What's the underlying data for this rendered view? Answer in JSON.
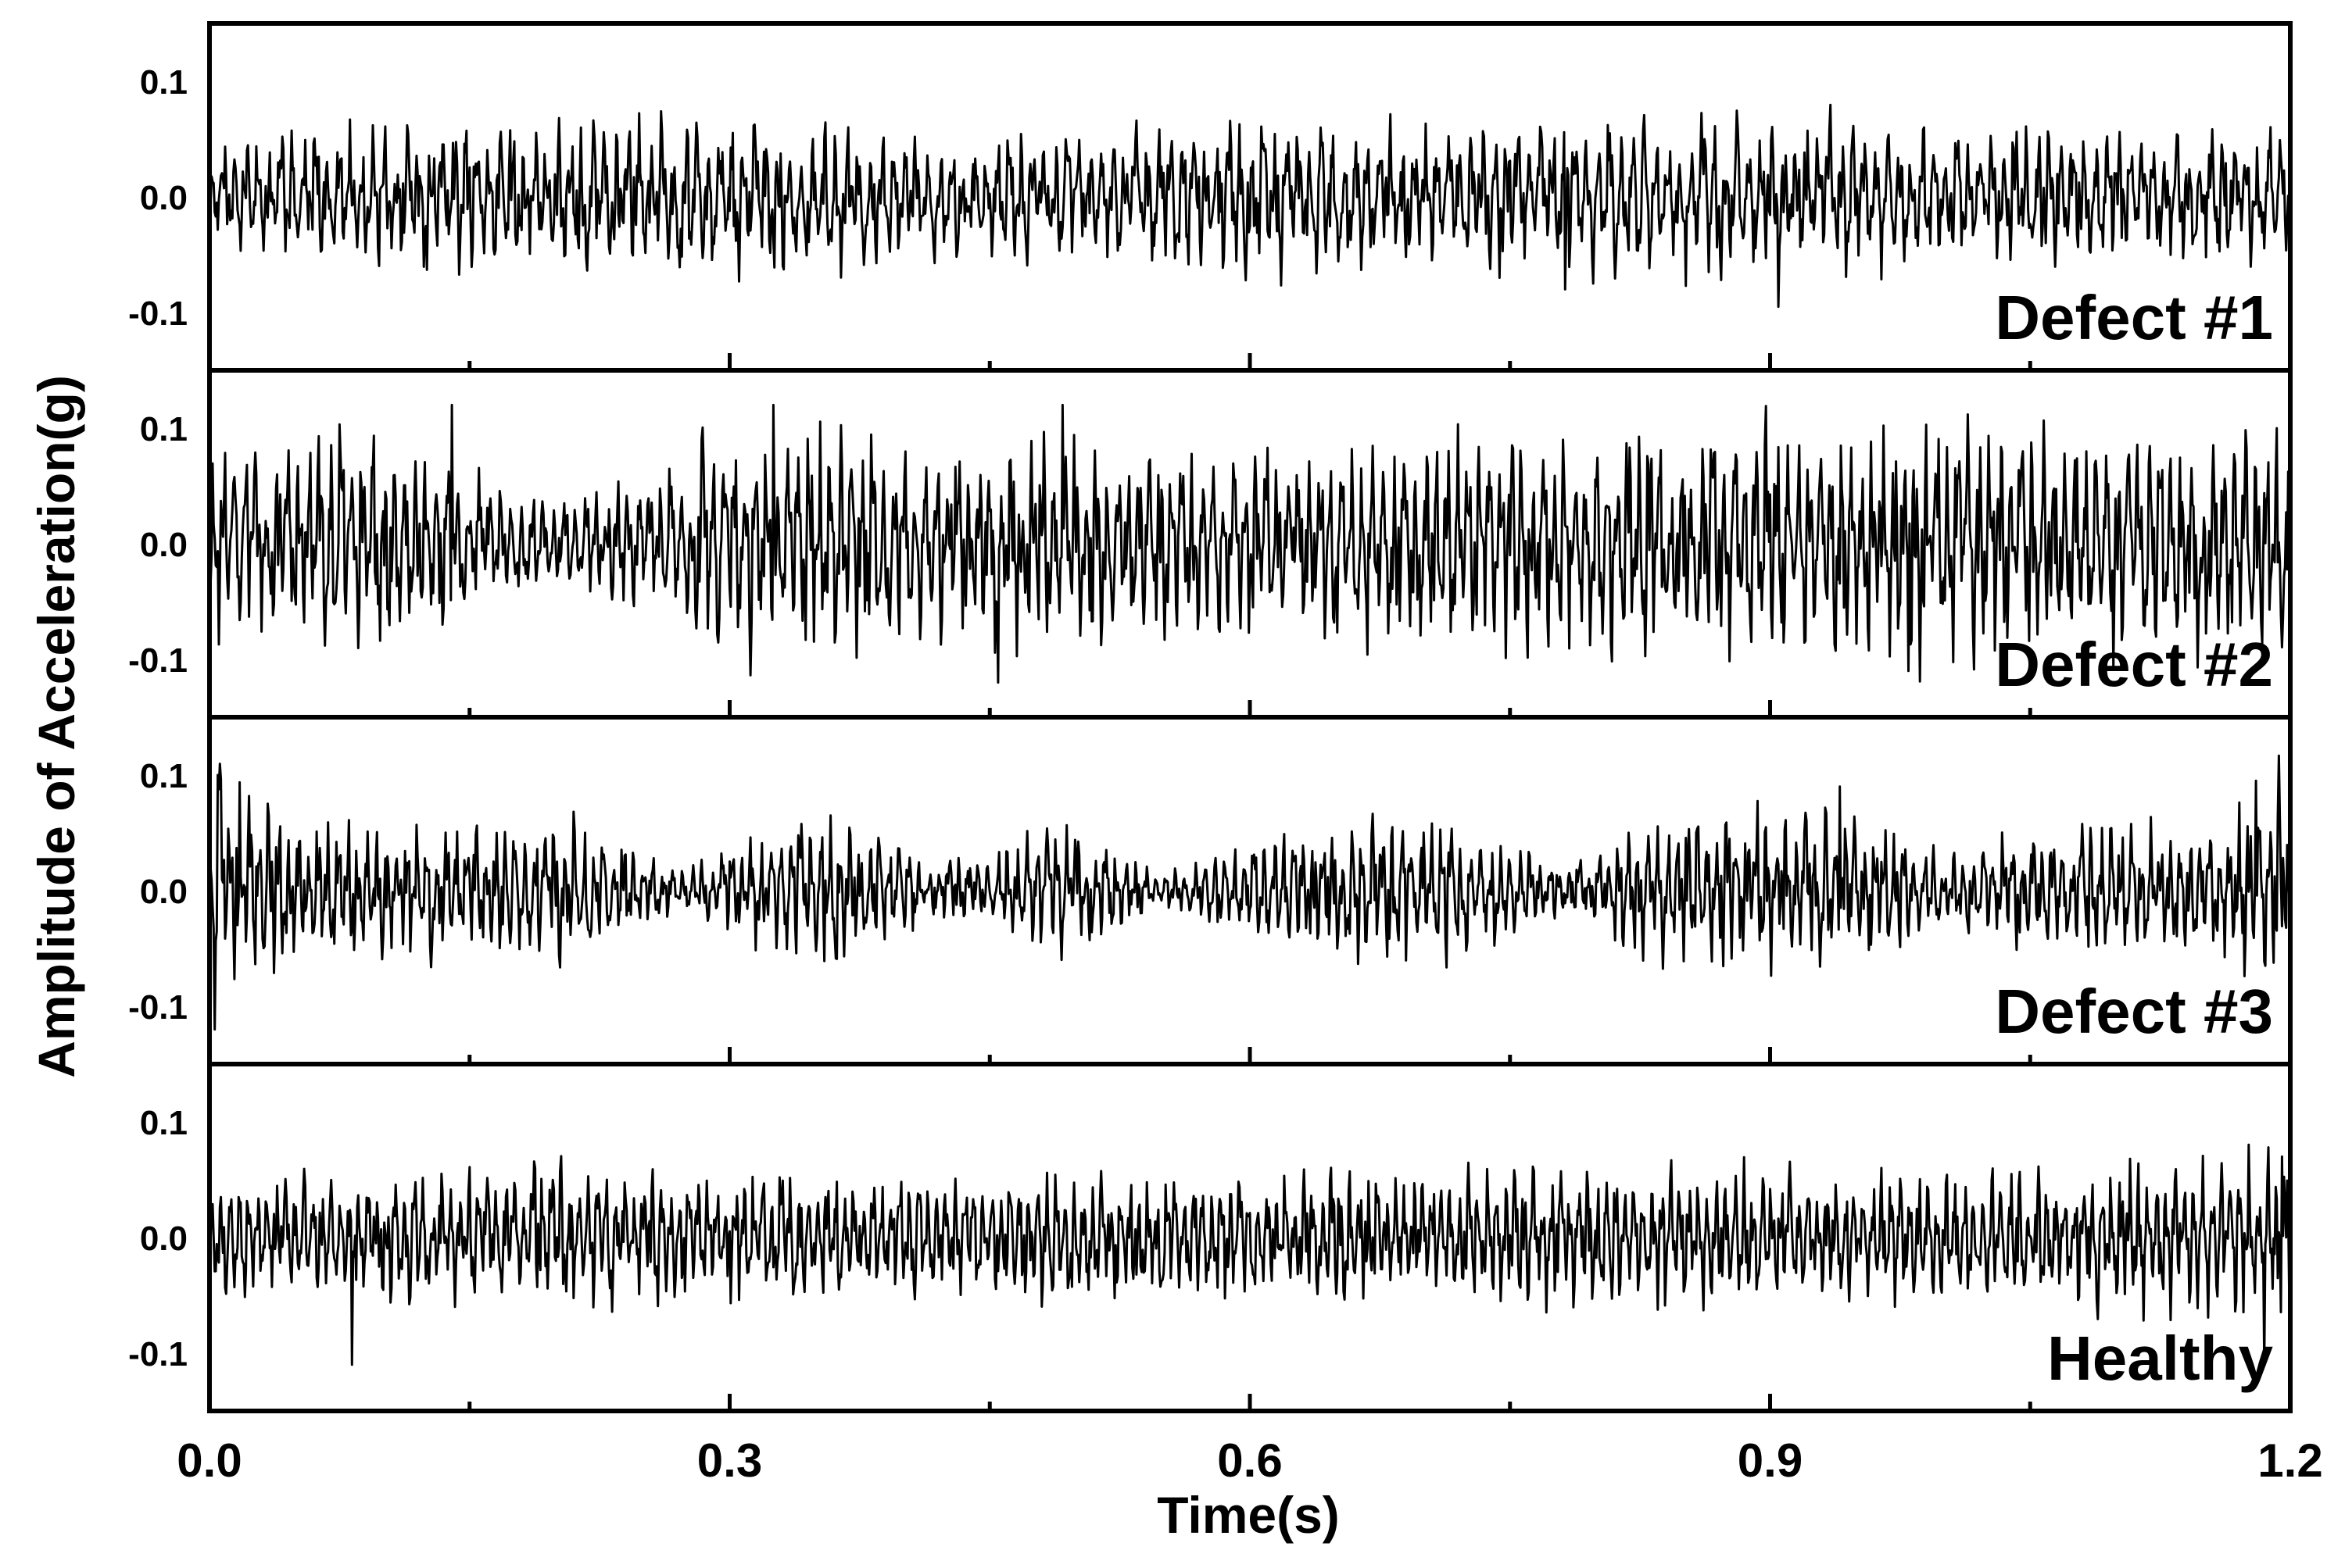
{
  "chart_data": {
    "type": "line",
    "xlabel": "Time(s)",
    "ylabel": "Amplitude of Acceleration(g)",
    "xlim": [
      0.0,
      1.2
    ],
    "x_ticks": [
      "0.0",
      "0.3",
      "0.6",
      "0.9",
      "1.2"
    ],
    "x_minor_ticks": [
      0.15,
      0.45,
      0.75,
      1.05
    ],
    "ylim": [
      -0.15,
      0.15
    ],
    "y_ticks": [
      "0.1",
      "0.0",
      "-0.1"
    ],
    "y_tick_values": [
      0.1,
      0.0,
      -0.1
    ],
    "grid": false,
    "line_color": "#000000",
    "panels": [
      {
        "label": "Defect #1",
        "amplitude_envelope": [
          {
            "t": 0.0,
            "a": 0.04
          },
          {
            "t": 0.1,
            "a": 0.055
          },
          {
            "t": 0.2,
            "a": 0.06
          },
          {
            "t": 0.3,
            "a": 0.06
          },
          {
            "t": 0.4,
            "a": 0.05
          },
          {
            "t": 0.5,
            "a": 0.045
          },
          {
            "t": 0.6,
            "a": 0.06
          },
          {
            "t": 0.7,
            "a": 0.05
          },
          {
            "t": 0.8,
            "a": 0.065
          },
          {
            "t": 0.9,
            "a": 0.06
          },
          {
            "t": 1.0,
            "a": 0.05
          },
          {
            "t": 1.1,
            "a": 0.05
          },
          {
            "t": 1.2,
            "a": 0.05
          }
        ],
        "peaks": [
          {
            "t": 0.782,
            "v": -0.08
          },
          {
            "t": 0.905,
            "v": -0.095
          },
          {
            "t": 0.641,
            "v": 0.06
          },
          {
            "t": 0.214,
            "v": 0.06
          }
        ]
      },
      {
        "label": "Defect #2",
        "amplitude_envelope": [
          {
            "t": 0.0,
            "a": 0.07
          },
          {
            "t": 0.1,
            "a": 0.09
          },
          {
            "t": 0.2,
            "a": 0.03
          },
          {
            "t": 0.3,
            "a": 0.09
          },
          {
            "t": 0.4,
            "a": 0.08
          },
          {
            "t": 0.5,
            "a": 0.08
          },
          {
            "t": 0.6,
            "a": 0.065
          },
          {
            "t": 0.7,
            "a": 0.085
          },
          {
            "t": 0.8,
            "a": 0.085
          },
          {
            "t": 0.9,
            "a": 0.09
          },
          {
            "t": 1.0,
            "a": 0.09
          },
          {
            "t": 1.1,
            "a": 0.085
          },
          {
            "t": 1.2,
            "a": 0.09
          }
        ],
        "peaks": [
          {
            "t": 0.492,
            "v": -0.14
          },
          {
            "t": 0.492,
            "v": 0.12
          },
          {
            "t": 0.14,
            "v": 0.12
          },
          {
            "t": 0.325,
            "v": 0.12
          },
          {
            "t": 0.455,
            "v": -0.12
          },
          {
            "t": 0.98,
            "v": -0.11
          }
        ]
      },
      {
        "label": "Defect #3",
        "amplitude_envelope": [
          {
            "t": 0.0,
            "a": 0.1
          },
          {
            "t": 0.05,
            "a": 0.05
          },
          {
            "t": 0.1,
            "a": 0.05
          },
          {
            "t": 0.15,
            "a": 0.05
          },
          {
            "t": 0.2,
            "a": 0.06
          },
          {
            "t": 0.27,
            "a": 0.015
          },
          {
            "t": 0.35,
            "a": 0.065
          },
          {
            "t": 0.42,
            "a": 0.02
          },
          {
            "t": 0.5,
            "a": 0.05
          },
          {
            "t": 0.55,
            "a": 0.015
          },
          {
            "t": 0.62,
            "a": 0.045
          },
          {
            "t": 0.7,
            "a": 0.06
          },
          {
            "t": 0.78,
            "a": 0.02
          },
          {
            "t": 0.85,
            "a": 0.065
          },
          {
            "t": 0.95,
            "a": 0.06
          },
          {
            "t": 1.0,
            "a": 0.03
          },
          {
            "t": 1.1,
            "a": 0.055
          },
          {
            "t": 1.15,
            "a": 0.04
          },
          {
            "t": 1.2,
            "a": 0.095
          }
        ],
        "peaks": [
          {
            "t": 0.003,
            "v": -0.12
          },
          {
            "t": 0.005,
            "v": 0.1
          },
          {
            "t": 0.94,
            "v": 0.09
          },
          {
            "t": 1.18,
            "v": 0.095
          }
        ]
      },
      {
        "label": "Healthy",
        "amplitude_envelope": [
          {
            "t": 0.0,
            "a": 0.045
          },
          {
            "t": 0.1,
            "a": 0.045
          },
          {
            "t": 0.2,
            "a": 0.055
          },
          {
            "t": 0.3,
            "a": 0.05
          },
          {
            "t": 0.4,
            "a": 0.045
          },
          {
            "t": 0.5,
            "a": 0.05
          },
          {
            "t": 0.6,
            "a": 0.045
          },
          {
            "t": 0.7,
            "a": 0.05
          },
          {
            "t": 0.8,
            "a": 0.05
          },
          {
            "t": 0.9,
            "a": 0.05
          },
          {
            "t": 1.0,
            "a": 0.05
          },
          {
            "t": 1.1,
            "a": 0.055
          },
          {
            "t": 1.2,
            "a": 0.065
          }
        ],
        "peaks": [
          {
            "t": 0.082,
            "v": -0.11
          },
          {
            "t": 0.188,
            "v": 0.06
          },
          {
            "t": 1.185,
            "v": -0.11
          },
          {
            "t": 1.195,
            "v": 0.07
          }
        ]
      }
    ]
  }
}
